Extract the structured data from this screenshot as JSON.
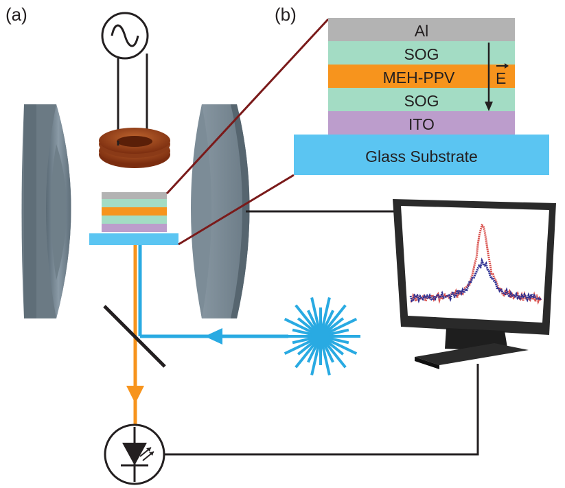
{
  "panels": {
    "a_label": "(a)",
    "b_label": "(b)"
  },
  "layer_stack": {
    "layers": [
      "Al",
      "SOG",
      "MEH-PPV",
      "SOG",
      "ITO"
    ],
    "substrate": "Glass Substrate",
    "field_label": "E",
    "colors": {
      "al": "#b3b3b3",
      "sog": "#a3dcc4",
      "meh_ppv": "#f7941d",
      "ito": "#bc9dcc",
      "substrate": "#5bc5f2"
    }
  },
  "beams": {
    "laser_color": "#29aae2",
    "emission_color": "#f7941d"
  },
  "spectrum": {
    "series": [
      {
        "color": "#d9534f"
      },
      {
        "color": "#2e3192"
      }
    ]
  },
  "icons": {
    "ac_source": "ac-source-icon",
    "coil": "coil-icon",
    "laser": "laser-starburst-icon",
    "photodiode": "photodiode-icon",
    "monitor": "monitor-icon",
    "mirror": "beam-splitter-icon",
    "magnet": "magnet-pole-icon"
  }
}
